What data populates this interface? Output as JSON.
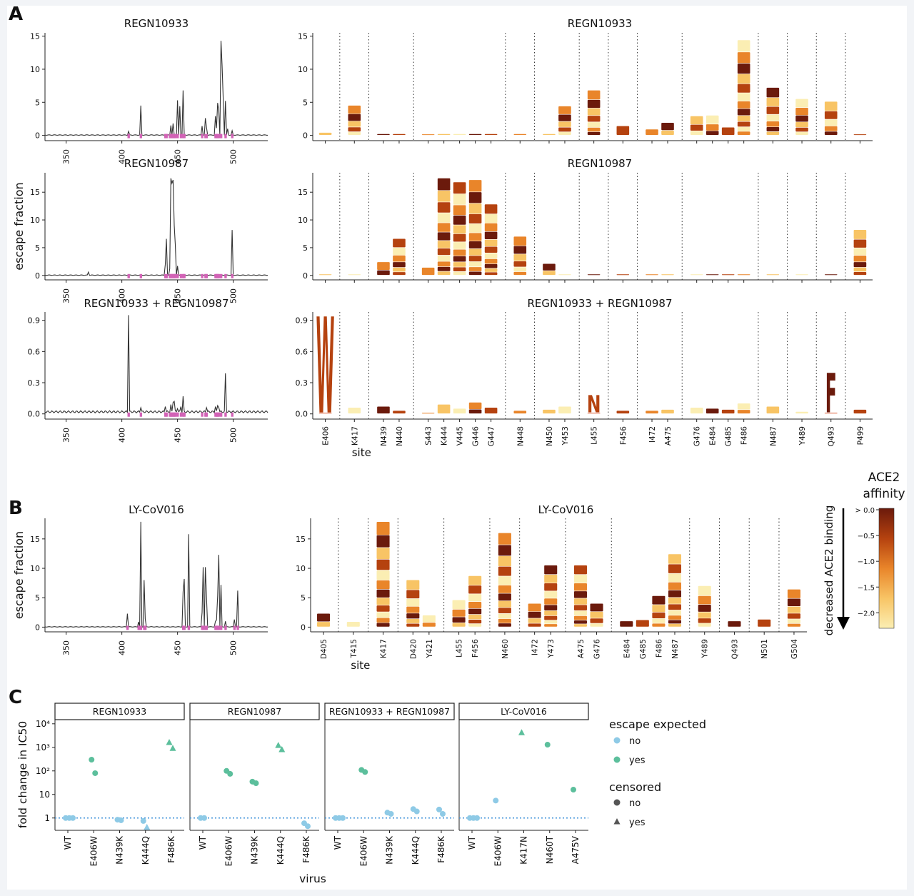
{
  "figure": {
    "panel_labels": [
      "A",
      "B",
      "C"
    ]
  },
  "chart_data": [
    {
      "panel": "A",
      "type": "line",
      "title": "REGN10933",
      "xticks": [
        "350",
        "400",
        "450",
        "500"
      ],
      "yticks": [
        "0",
        "5",
        "10",
        "15"
      ],
      "xlim": [
        331,
        531
      ],
      "ylim": [
        -0.8,
        15.5
      ],
      "spikes": [
        [
          406,
          0.6
        ],
        [
          417,
          4.5
        ],
        [
          444,
          1.5
        ],
        [
          446,
          1.8
        ],
        [
          450,
          5.3
        ],
        [
          452,
          4.4
        ],
        [
          455,
          6.8
        ],
        [
          472,
          1.4
        ],
        [
          475,
          2.6
        ],
        [
          476,
          1.2
        ],
        [
          484,
          2.9
        ],
        [
          485,
          1.1
        ],
        [
          486,
          4.9
        ],
        [
          487,
          3.7
        ],
        [
          489,
          14.3
        ],
        [
          490,
          10.6
        ],
        [
          491,
          5.5
        ],
        [
          493,
          5.2
        ],
        [
          495,
          1.0
        ],
        [
          499,
          0.7
        ]
      ],
      "sites_marked": [
        406,
        417,
        439,
        440,
        443,
        444,
        445,
        446,
        447,
        448,
        450,
        453,
        455,
        456,
        472,
        475,
        476,
        484,
        485,
        486,
        487,
        489,
        493,
        499
      ]
    },
    {
      "panel": "A",
      "type": "line",
      "title": "REGN10987",
      "ylabel": "escape fraction",
      "xticks": [
        "350",
        "400",
        "450",
        "500"
      ],
      "yticks": [
        "0",
        "5",
        "10",
        "15"
      ],
      "xlim": [
        331,
        531
      ],
      "ylim": [
        -0.8,
        18.5
      ],
      "spikes": [
        [
          370,
          0.6
        ],
        [
          439,
          2.0
        ],
        [
          440,
          6.6
        ],
        [
          443,
          1.2
        ],
        [
          444,
          17.5
        ],
        [
          445,
          16.6
        ],
        [
          446,
          17.2
        ],
        [
          447,
          9.0
        ],
        [
          448,
          5.5
        ],
        [
          450,
          1.7
        ],
        [
          499,
          8.2
        ]
      ],
      "sites_marked": [
        406,
        417,
        439,
        440,
        443,
        444,
        445,
        446,
        447,
        448,
        450,
        453,
        455,
        456,
        472,
        475,
        476,
        484,
        485,
        486,
        487,
        489,
        493,
        499
      ]
    },
    {
      "panel": "A",
      "type": "line",
      "title": "REGN10933 + REGN10987",
      "xticks": [
        "350",
        "400",
        "450",
        "500"
      ],
      "yticks": [
        "0.0",
        "0.3",
        "0.6",
        "0.9"
      ],
      "xlim": [
        331,
        531
      ],
      "ylim": [
        -0.05,
        0.98
      ],
      "spikes": [
        [
          406,
          0.95
        ],
        [
          417,
          0.06
        ],
        [
          439,
          0.07
        ],
        [
          444,
          0.09
        ],
        [
          446,
          0.11
        ],
        [
          447,
          0.12
        ],
        [
          450,
          0.05
        ],
        [
          453,
          0.07
        ],
        [
          455,
          0.17
        ],
        [
          476,
          0.06
        ],
        [
          484,
          0.07
        ],
        [
          486,
          0.08
        ],
        [
          487,
          0.06
        ],
        [
          493,
          0.39
        ]
      ],
      "sites_marked": [
        406,
        417,
        439,
        440,
        443,
        444,
        445,
        446,
        447,
        448,
        450,
        453,
        455,
        456,
        472,
        475,
        476,
        484,
        485,
        486,
        487,
        489,
        493,
        499
      ]
    },
    {
      "panel": "A",
      "type": "bar",
      "subtype": "logo",
      "title": "REGN10933",
      "yticks": [
        "0",
        "5",
        "10",
        "15"
      ],
      "ylim": [
        -0.8,
        15.5
      ],
      "categories": [
        "E406",
        "K417",
        "N439",
        "N440",
        "S443",
        "K444",
        "V445",
        "G446",
        "G447",
        "N448",
        "N450",
        "Y453",
        "L455",
        "F456",
        "I472",
        "A475",
        "G476",
        "E484",
        "G485",
        "F486",
        "N487",
        "Y489",
        "Q493",
        "P499"
      ],
      "values": [
        0.4,
        4.5,
        0.2,
        0.2,
        0.1,
        0.2,
        0.2,
        0.2,
        0.2,
        0.2,
        0.2,
        4.4,
        6.8,
        1.4,
        0.9,
        1.9,
        2.9,
        3.0,
        1.2,
        14.4,
        7.2,
        5.5,
        5.1,
        0.1
      ],
      "group_sizes": [
        1,
        1,
        2,
        5,
        1,
        2,
        1,
        1,
        2,
        4,
        1,
        1,
        1,
        1
      ]
    },
    {
      "panel": "A",
      "type": "bar",
      "subtype": "logo",
      "title": "REGN10987",
      "yticks": [
        "0",
        "5",
        "10",
        "15"
      ],
      "ylim": [
        -0.8,
        18.5
      ],
      "categories": [
        "E406",
        "K417",
        "N439",
        "N440",
        "S443",
        "K444",
        "V445",
        "G446",
        "G447",
        "N448",
        "N450",
        "Y453",
        "L455",
        "F456",
        "I472",
        "A475",
        "G476",
        "E484",
        "G485",
        "F486",
        "N487",
        "Y489",
        "Q493",
        "P499"
      ],
      "values": [
        0.2,
        0.1,
        2.4,
        6.6,
        1.4,
        17.5,
        16.8,
        17.2,
        12.8,
        7.0,
        2.1,
        0.1,
        0.1,
        0.1,
        0.1,
        0.1,
        0.1,
        0.1,
        0.1,
        0.1,
        0.1,
        0.1,
        0.1,
        8.2
      ],
      "group_sizes": [
        1,
        1,
        2,
        5,
        1,
        2,
        1,
        1,
        2,
        4,
        1,
        1,
        1,
        1
      ]
    },
    {
      "panel": "A",
      "type": "bar",
      "subtype": "logo",
      "title": "REGN10933 + REGN10987",
      "xlabel": "site",
      "yticks": [
        "0.0",
        "0.3",
        "0.6",
        "0.9"
      ],
      "ylim": [
        -0.05,
        0.98
      ],
      "categories": [
        "E406",
        "K417",
        "N439",
        "N440",
        "S443",
        "K444",
        "V445",
        "G446",
        "G447",
        "N448",
        "N450",
        "Y453",
        "L455",
        "F456",
        "I472",
        "A475",
        "G476",
        "E484",
        "G485",
        "F486",
        "N487",
        "Y489",
        "Q493",
        "P499"
      ],
      "values": [
        0.95,
        0.06,
        0.07,
        0.03,
        0.01,
        0.09,
        0.05,
        0.11,
        0.06,
        0.03,
        0.04,
        0.07,
        0.17,
        0.03,
        0.03,
        0.04,
        0.06,
        0.05,
        0.04,
        0.1,
        0.07,
        0.02,
        0.39,
        0.04
      ],
      "letters": [
        {
          "site": "E406",
          "letter": "W"
        },
        {
          "site": "Q493",
          "letter": "F"
        },
        {
          "site": "L455",
          "letter": "N"
        }
      ],
      "group_sizes": [
        1,
        1,
        2,
        5,
        1,
        2,
        1,
        1,
        2,
        4,
        1,
        1,
        1,
        1
      ]
    },
    {
      "panel": "B",
      "type": "line",
      "title": "LY-CoV016",
      "ylabel": "escape fraction",
      "xticks": [
        "350",
        "400",
        "450",
        "500"
      ],
      "yticks": [
        "0",
        "5",
        "10",
        "15"
      ],
      "xlim": [
        331,
        531
      ],
      "ylim": [
        -0.8,
        18.5
      ],
      "spikes": [
        [
          405,
          2.3
        ],
        [
          415,
          0.9
        ],
        [
          417,
          17.9
        ],
        [
          420,
          8.0
        ],
        [
          421,
          1.4
        ],
        [
          455,
          6.0
        ],
        [
          456,
          8.2
        ],
        [
          460,
          15.8
        ],
        [
          472,
          2.5
        ],
        [
          473,
          10.2
        ],
        [
          475,
          10.2
        ],
        [
          476,
          5.1
        ],
        [
          484,
          1.0
        ],
        [
          485,
          1.2
        ],
        [
          486,
          5.3
        ],
        [
          487,
          12.3
        ],
        [
          489,
          7.2
        ],
        [
          493,
          1.0
        ],
        [
          501,
          1.3
        ],
        [
          504,
          6.2
        ]
      ],
      "sites_marked": [
        405,
        415,
        417,
        420,
        421,
        455,
        456,
        460,
        472,
        473,
        475,
        476,
        484,
        485,
        486,
        487,
        489,
        493,
        501,
        504
      ]
    },
    {
      "panel": "B",
      "type": "bar",
      "subtype": "logo",
      "title": "LY-CoV016",
      "xlabel": "site",
      "yticks": [
        "0",
        "5",
        "10",
        "15"
      ],
      "ylim": [
        -0.8,
        18.5
      ],
      "categories": [
        "D405",
        "T415",
        "K417",
        "D420",
        "Y421",
        "L455",
        "F456",
        "N460",
        "I472",
        "Y473",
        "A475",
        "G476",
        "E484",
        "G485",
        "F486",
        "N487",
        "Y489",
        "Q493",
        "N501",
        "G504"
      ],
      "values": [
        2.3,
        0.9,
        17.9,
        8.0,
        2.0,
        4.6,
        8.7,
        16.0,
        4.0,
        10.5,
        10.5,
        4.0,
        1.0,
        1.2,
        5.3,
        12.4,
        7.0,
        1.0,
        1.3,
        6.4
      ],
      "group_sizes": [
        1,
        1,
        1,
        2,
        2,
        1,
        2,
        2,
        4,
        1,
        1,
        1,
        1
      ]
    },
    {
      "panel": "C",
      "type": "scatter",
      "ylabel": "fold change in IC50",
      "xlabel": "virus",
      "y_scale": "log",
      "yticks": [
        "1",
        "10",
        "10²",
        "10³",
        "10⁴"
      ],
      "ylim": [
        0.3,
        15000
      ],
      "legend": {
        "title1": "escape expected",
        "items1": [
          {
            "label": "no",
            "color": "#8ecae6"
          },
          {
            "label": "yes",
            "color": "#5cbf9c"
          }
        ],
        "title2": "censored",
        "items2": [
          {
            "label": "no",
            "shape": "circle"
          },
          {
            "label": "yes",
            "shape": "triangle"
          }
        ]
      },
      "facets": [
        {
          "title": "REGN10933",
          "categories": [
            "WT",
            "E406W",
            "N439K",
            "K444Q",
            "F486K"
          ],
          "points": [
            {
              "virus": "WT",
              "fold": 1.0,
              "expected": "no",
              "censored": "no"
            },
            {
              "virus": "WT",
              "fold": 1.0,
              "expected": "no",
              "censored": "no"
            },
            {
              "virus": "WT",
              "fold": 1.0,
              "expected": "no",
              "censored": "no"
            },
            {
              "virus": "E406W",
              "fold": 300,
              "expected": "yes",
              "censored": "no"
            },
            {
              "virus": "E406W",
              "fold": 80,
              "expected": "yes",
              "censored": "no"
            },
            {
              "virus": "N439K",
              "fold": 0.85,
              "expected": "no",
              "censored": "no"
            },
            {
              "virus": "N439K",
              "fold": 0.8,
              "expected": "no",
              "censored": "no"
            },
            {
              "virus": "K444Q",
              "fold": 0.75,
              "expected": "no",
              "censored": "no"
            },
            {
              "virus": "K444Q",
              "fold": 0.4,
              "expected": "no",
              "censored": "yes"
            },
            {
              "virus": "F486K",
              "fold": 1600,
              "expected": "yes",
              "censored": "yes"
            },
            {
              "virus": "F486K",
              "fold": 900,
              "expected": "yes",
              "censored": "yes"
            }
          ]
        },
        {
          "title": "REGN10987",
          "categories": [
            "WT",
            "E406W",
            "N439K",
            "K444Q",
            "F486K"
          ],
          "points": [
            {
              "virus": "WT",
              "fold": 1.0,
              "expected": "no",
              "censored": "no"
            },
            {
              "virus": "WT",
              "fold": 1.0,
              "expected": "no",
              "censored": "no"
            },
            {
              "virus": "E406W",
              "fold": 100,
              "expected": "yes",
              "censored": "no"
            },
            {
              "virus": "E406W",
              "fold": 75,
              "expected": "yes",
              "censored": "no"
            },
            {
              "virus": "N439K",
              "fold": 35,
              "expected": "yes",
              "censored": "no"
            },
            {
              "virus": "N439K",
              "fold": 30,
              "expected": "yes",
              "censored": "no"
            },
            {
              "virus": "K444Q",
              "fold": 1200,
              "expected": "yes",
              "censored": "yes"
            },
            {
              "virus": "K444Q",
              "fold": 800,
              "expected": "yes",
              "censored": "yes"
            },
            {
              "virus": "F486K",
              "fold": 0.6,
              "expected": "no",
              "censored": "no"
            },
            {
              "virus": "F486K",
              "fold": 0.45,
              "expected": "no",
              "censored": "no"
            }
          ]
        },
        {
          "title": "REGN10933 + REGN10987",
          "categories": [
            "WT",
            "E406W",
            "N439K",
            "K444Q",
            "F486K"
          ],
          "points": [
            {
              "virus": "WT",
              "fold": 1.0,
              "expected": "no",
              "censored": "no"
            },
            {
              "virus": "WT",
              "fold": 1.0,
              "expected": "no",
              "censored": "no"
            },
            {
              "virus": "WT",
              "fold": 1.0,
              "expected": "no",
              "censored": "no"
            },
            {
              "virus": "E406W",
              "fold": 110,
              "expected": "yes",
              "censored": "no"
            },
            {
              "virus": "E406W",
              "fold": 90,
              "expected": "yes",
              "censored": "no"
            },
            {
              "virus": "N439K",
              "fold": 1.7,
              "expected": "no",
              "censored": "no"
            },
            {
              "virus": "N439K",
              "fold": 1.5,
              "expected": "no",
              "censored": "no"
            },
            {
              "virus": "K444Q",
              "fold": 2.4,
              "expected": "no",
              "censored": "no"
            },
            {
              "virus": "K444Q",
              "fold": 1.9,
              "expected": "no",
              "censored": "no"
            },
            {
              "virus": "F486K",
              "fold": 2.3,
              "expected": "no",
              "censored": "no"
            },
            {
              "virus": "F486K",
              "fold": 1.5,
              "expected": "no",
              "censored": "no"
            }
          ]
        },
        {
          "title": "LY-CoV016",
          "categories": [
            "WT",
            "E406W",
            "K417N",
            "N460T",
            "A475V"
          ],
          "points": [
            {
              "virus": "WT",
              "fold": 1.0,
              "expected": "no",
              "censored": "no"
            },
            {
              "virus": "WT",
              "fold": 1.0,
              "expected": "no",
              "censored": "no"
            },
            {
              "virus": "WT",
              "fold": 1.0,
              "expected": "no",
              "censored": "no"
            },
            {
              "virus": "E406W",
              "fold": 5.5,
              "expected": "no",
              "censored": "no"
            },
            {
              "virus": "K417N",
              "fold": 4200,
              "expected": "yes",
              "censored": "yes"
            },
            {
              "virus": "N460T",
              "fold": 1300,
              "expected": "yes",
              "censored": "no"
            },
            {
              "virus": "A475V",
              "fold": 16,
              "expected": "yes",
              "censored": "no"
            }
          ]
        }
      ]
    }
  ],
  "colorbar": {
    "title_line1": "ACE2",
    "title_line2": "affinity",
    "arrow_label": "decreased ACE2 binding",
    "ticks": [
      "> 0.0",
      "−0.5",
      "−1.0",
      "−1.5",
      "−2.0"
    ],
    "colors": [
      "#6b1a0c",
      "#b5420f",
      "#e9852a",
      "#f8c465",
      "#fbeeb3"
    ]
  }
}
